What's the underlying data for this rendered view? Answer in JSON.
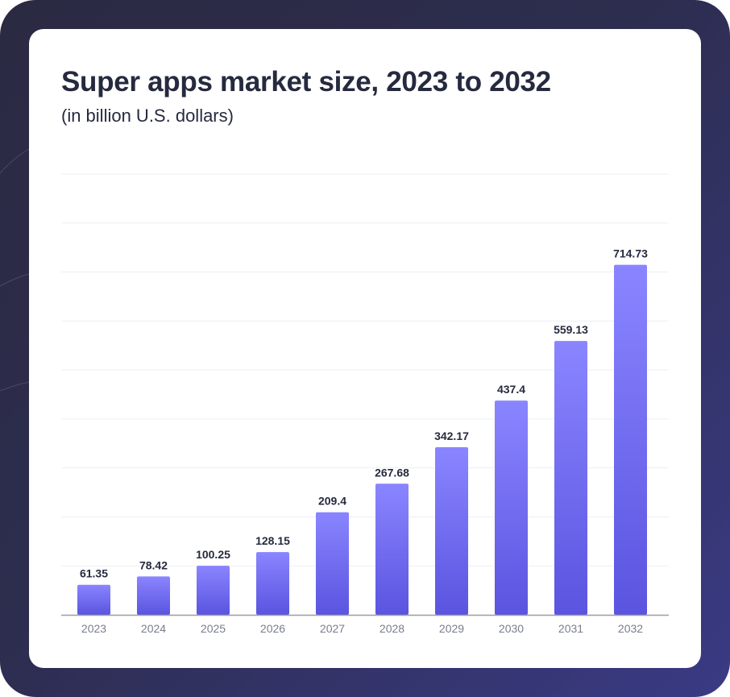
{
  "colors": {
    "bar_top": "#8a85ff",
    "bar_bottom": "#5a54e0",
    "grid": "#eeeff6",
    "axis": "#9a9ba6"
  },
  "chart_data": {
    "type": "bar",
    "title": "Super apps market size, 2023 to 2032",
    "subtitle": "(in billion U.S. dollars)",
    "categories": [
      "2023",
      "2024",
      "2025",
      "2026",
      "2027",
      "2028",
      "2029",
      "2030",
      "2031",
      "2032"
    ],
    "values": [
      61.35,
      78.42,
      100.25,
      128.15,
      209.4,
      267.68,
      342.17,
      437.4,
      559.13,
      714.73
    ],
    "value_labels": [
      "61.35",
      "78.42",
      "100.25",
      "128.15",
      "209.4",
      "267.68",
      "342.17",
      "437.4",
      "559.13",
      "714.73"
    ],
    "xlabel": "",
    "ylabel": "",
    "ylim": [
      0,
      900
    ],
    "grid": true,
    "legend": "none"
  }
}
